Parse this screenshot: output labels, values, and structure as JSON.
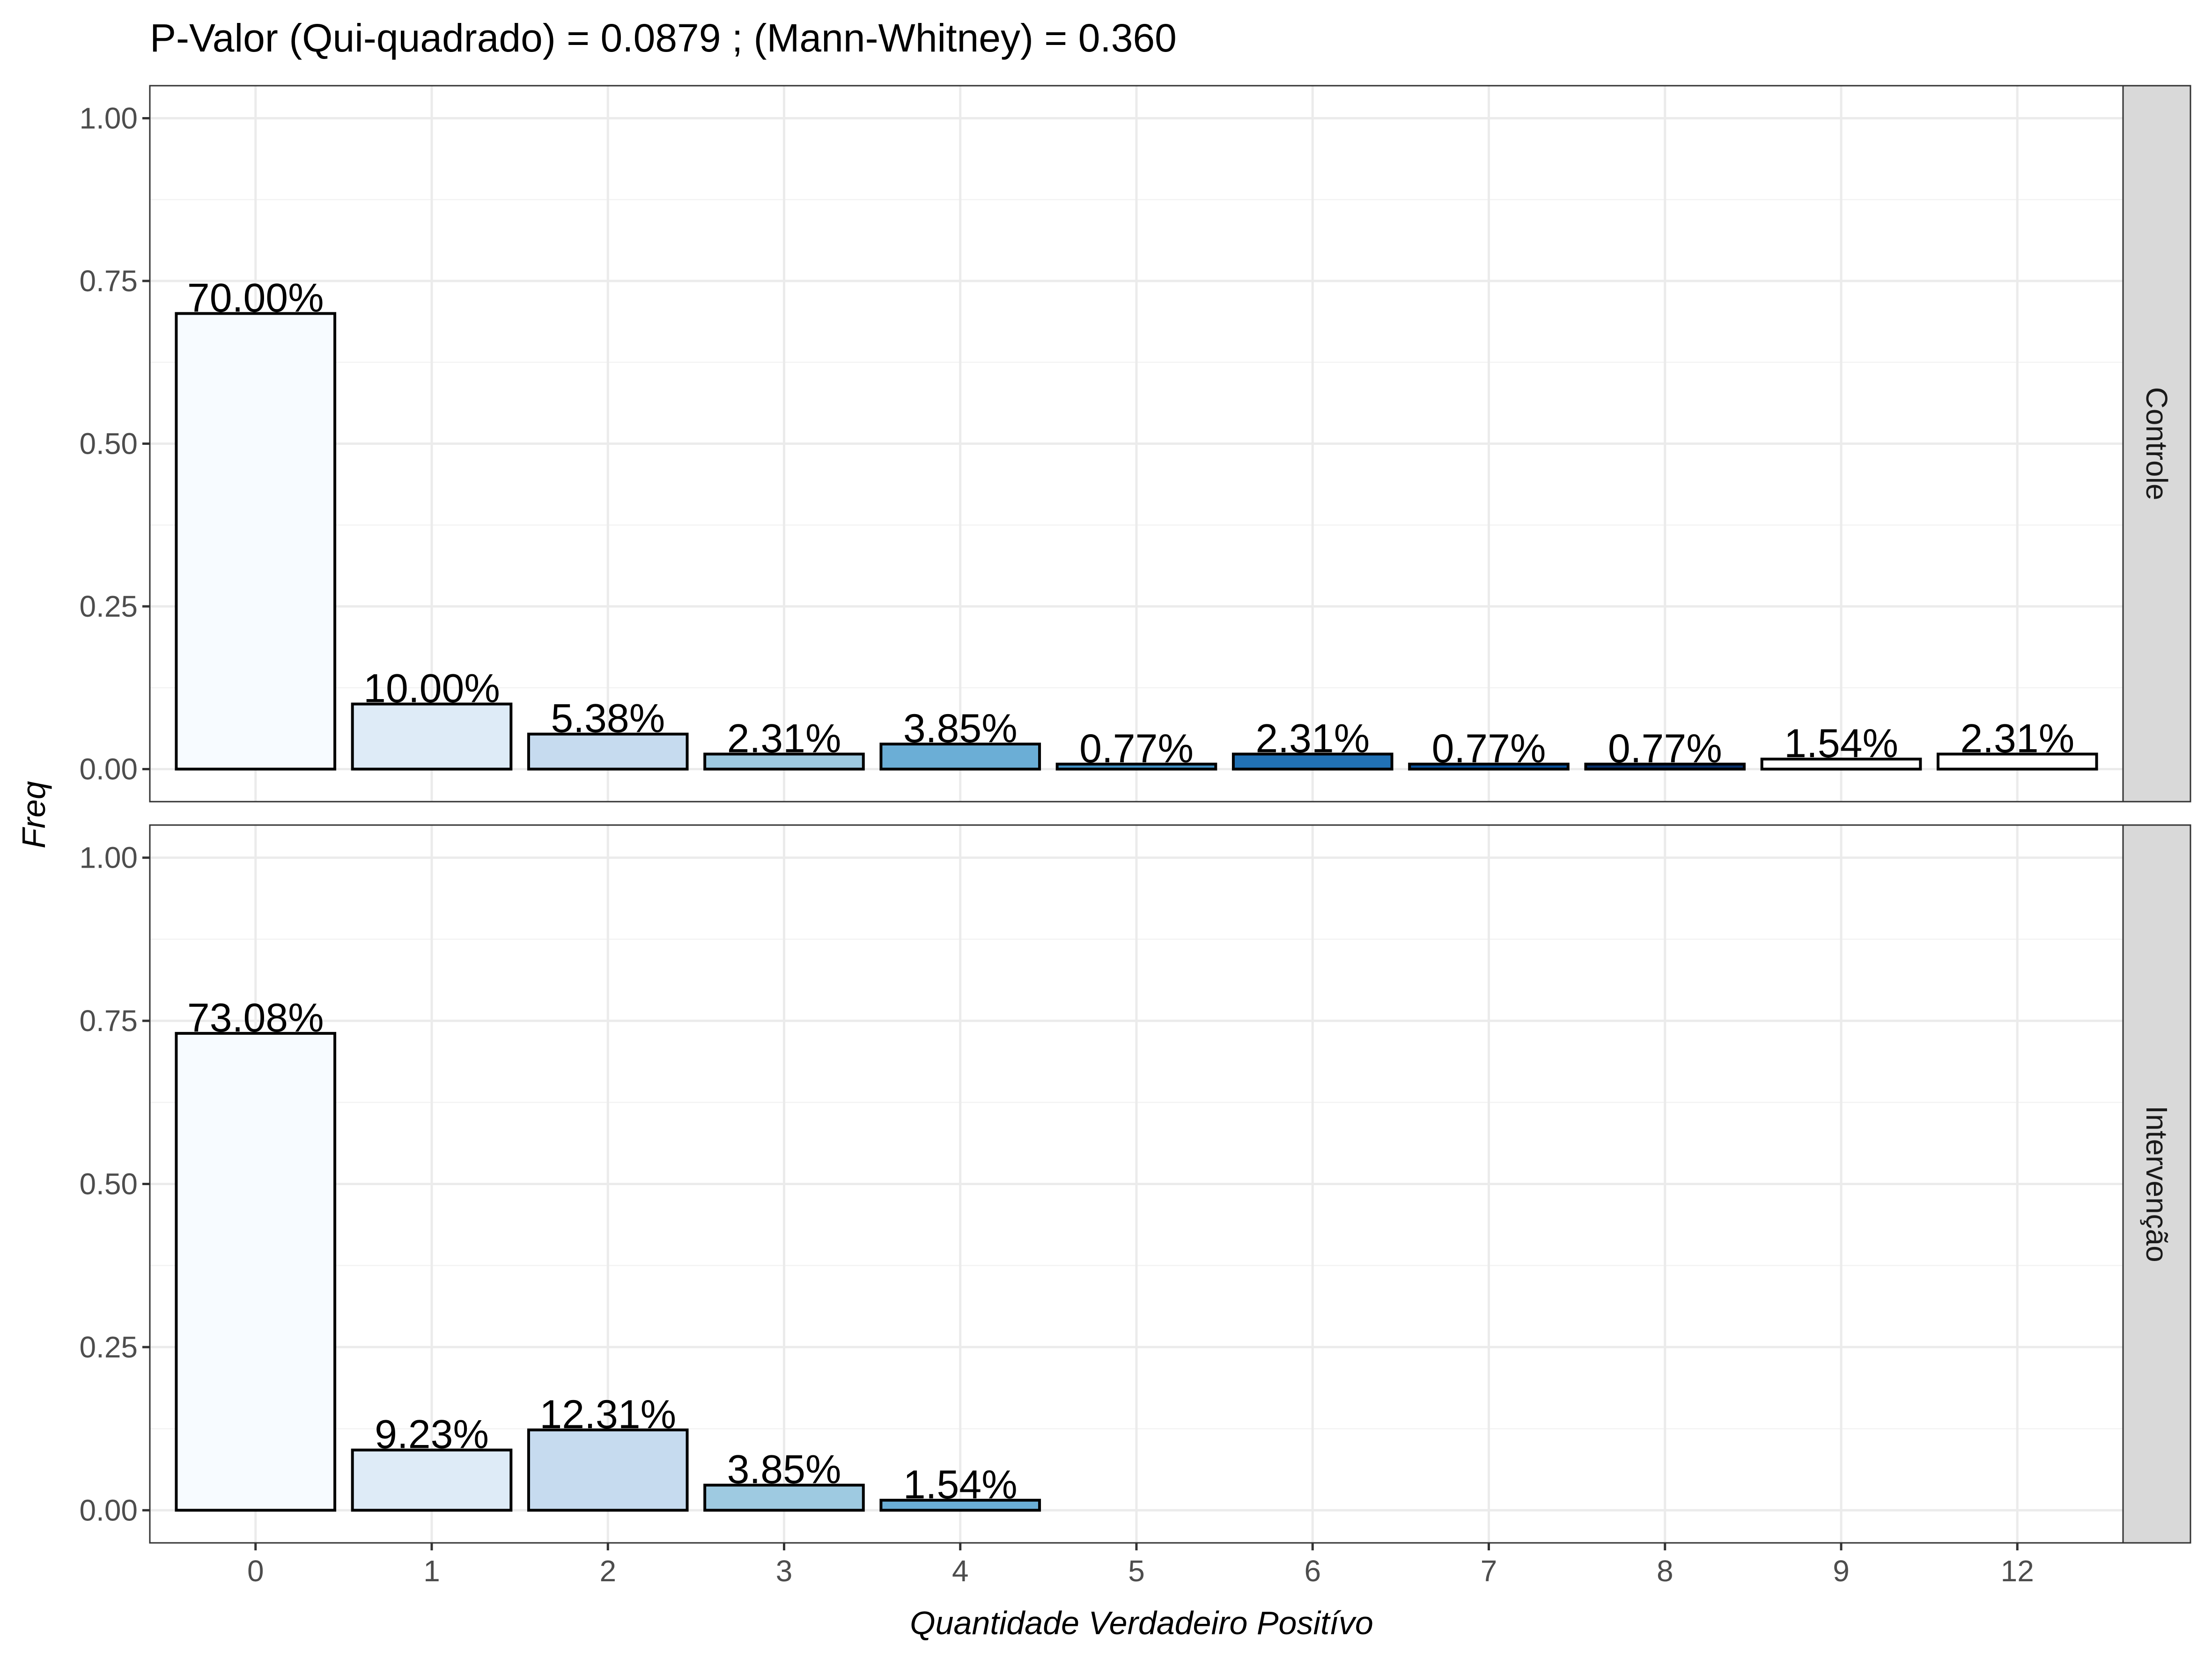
{
  "chart_data": {
    "type": "bar",
    "title": "P-Valor (Qui-quadrado) = 0.0879 ; (Mann-Whitney) = 0.360",
    "xlabel": "Quantidade Verdadeiro Positívo",
    "ylabel": "Freq",
    "categories": [
      "0",
      "1",
      "2",
      "3",
      "4",
      "5",
      "6",
      "7",
      "8",
      "9",
      "12"
    ],
    "ylim": [
      0,
      1
    ],
    "yticks": [
      "0.00",
      "0.25",
      "0.50",
      "0.75",
      "1.00"
    ],
    "grid": true,
    "fill_colors": [
      "#f7fbff",
      "#deebf7",
      "#c6dbef",
      "#9ecae1",
      "#6baed6",
      "#4292c6",
      "#2171b5",
      "#08519c",
      "#08306b",
      "#ffffff",
      "#ffffff"
    ],
    "panels": [
      {
        "name": "Controle",
        "values": [
          0.7,
          0.1,
          0.0538,
          0.0231,
          0.0385,
          0.0077,
          0.0231,
          0.0077,
          0.0077,
          0.0154,
          0.0231
        ],
        "labels": [
          "70.00%",
          "10.00%",
          "5.38%",
          "2.31%",
          "3.85%",
          "0.77%",
          "2.31%",
          "0.77%",
          "0.77%",
          "1.54%",
          "2.31%"
        ]
      },
      {
        "name": "Intervenção",
        "values": [
          0.7308,
          0.0923,
          0.1231,
          0.0385,
          0.0154
        ],
        "labels": [
          "73.08%",
          "9.23%",
          "12.31%",
          "3.85%",
          "1.54%"
        ]
      }
    ]
  }
}
